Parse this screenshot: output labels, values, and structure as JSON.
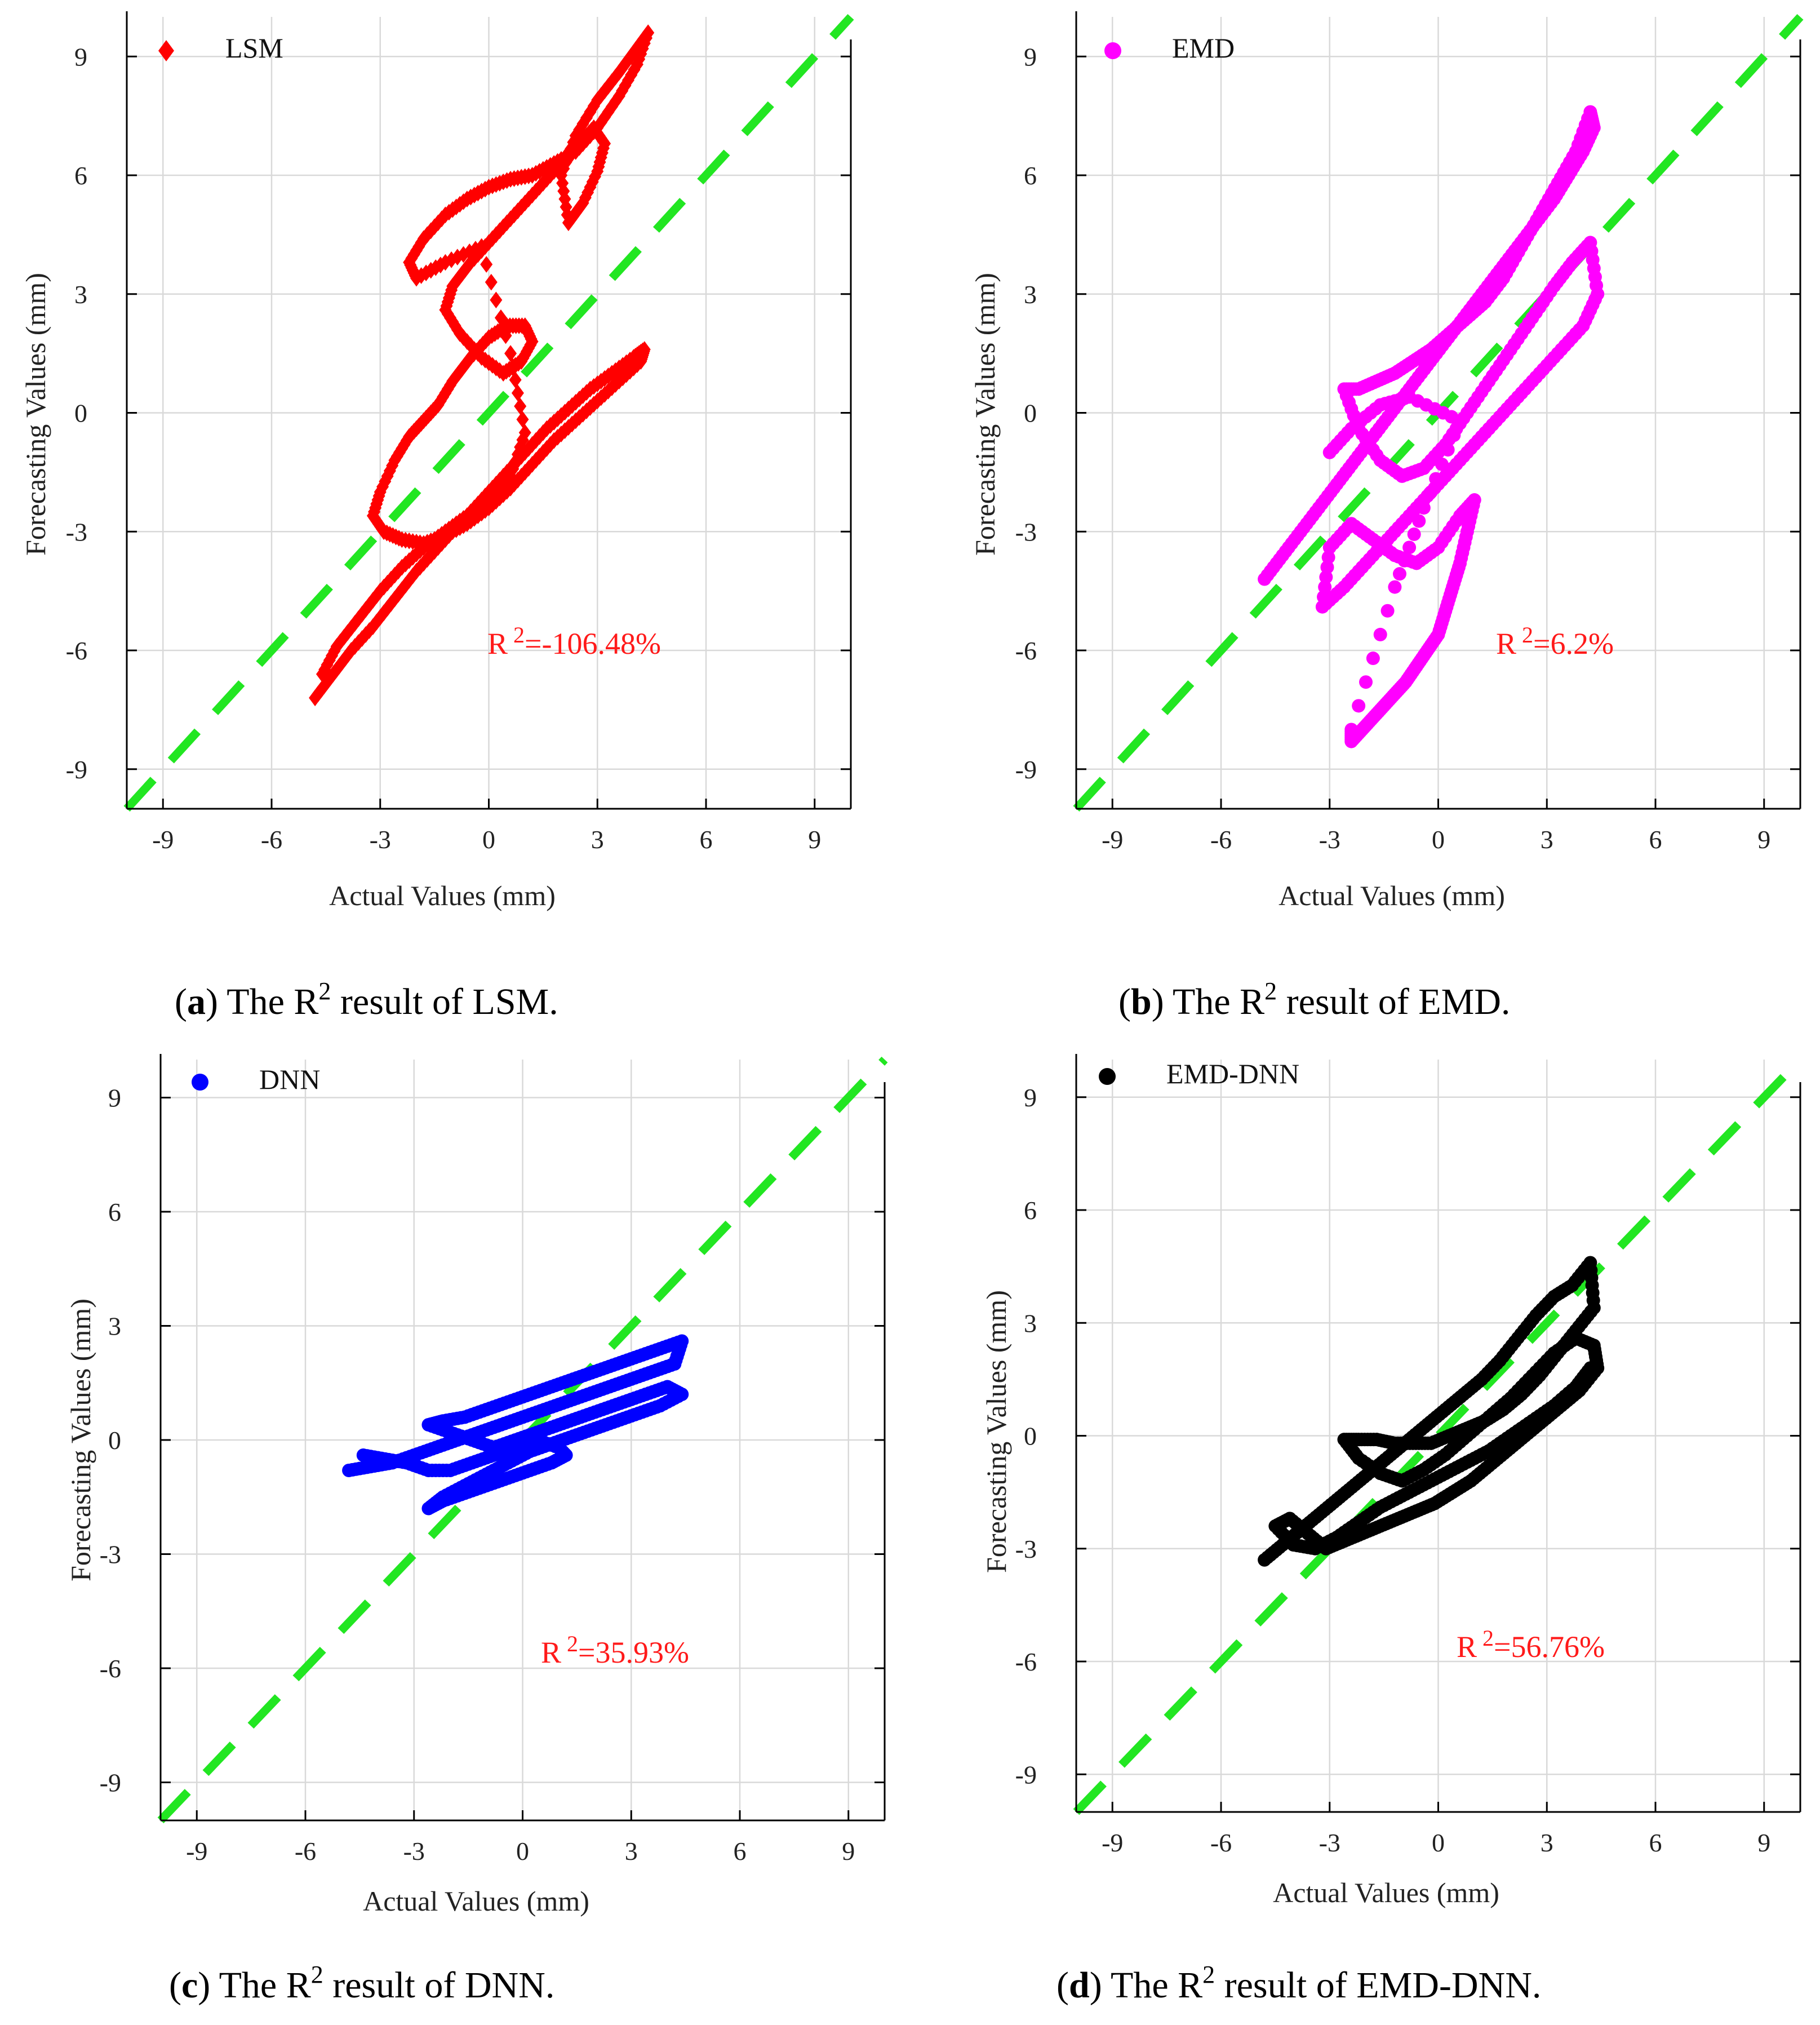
{
  "figure": {
    "panels": [
      {
        "id": "a",
        "legend": {
          "label": "LSM",
          "marker": "diamond"
        },
        "color": "#ff0000",
        "r2": {
          "prefix": "R",
          "sup": "2",
          "value": "=-106.48%"
        },
        "caption": {
          "letter": "a",
          "pre": "The R",
          "sup": "2",
          "post": " result of LSM."
        }
      },
      {
        "id": "b",
        "legend": {
          "label": "EMD",
          "marker": "circle"
        },
        "color": "#ff00ff",
        "r2": {
          "prefix": "R",
          "sup": "2",
          "value": "=6.2%"
        },
        "caption": {
          "letter": "b",
          "pre": "The R",
          "sup": "2",
          "post": " result of EMD."
        }
      },
      {
        "id": "c",
        "legend": {
          "label": "DNN",
          "marker": "circle"
        },
        "color": "#0000ff",
        "r2": {
          "prefix": "R",
          "sup": "2",
          "value": "=35.93%"
        },
        "caption": {
          "letter": "c",
          "pre": "The R",
          "sup": "2",
          "post": " result of DNN."
        }
      },
      {
        "id": "d",
        "legend": {
          "label": "EMD-DNN",
          "marker": "circle"
        },
        "color": "#000000",
        "r2": {
          "prefix": "R",
          "sup": "2",
          "value": "=56.76%"
        },
        "caption": {
          "letter": "d",
          "pre": "The R",
          "sup": "2",
          "post": " result of EMD-DNN."
        }
      }
    ]
  },
  "chart_data": [
    {
      "type": "scatter",
      "title": "LSM",
      "xlabel": "Actual Values (mm)",
      "ylabel": "Forecasting Values (mm)",
      "xlim": [
        -10,
        10
      ],
      "ylim": [
        -10,
        10
      ],
      "xticks": [
        -9,
        -6,
        -3,
        0,
        3,
        6,
        9
      ],
      "yticks": [
        -9,
        -6,
        -3,
        0,
        3,
        6,
        9
      ],
      "xtick_labels": [
        "-9",
        "-6",
        "-3",
        "0",
        "3",
        "6",
        "9"
      ],
      "ytick_labels": [
        "-9",
        "-6",
        "-3",
        "0",
        "3",
        "6",
        "9"
      ],
      "grid": true,
      "reference_line": {
        "slope": 1,
        "intercept": 0,
        "color": "#22e622",
        "style": "dashed"
      },
      "annotation": "R 2=-106.48%",
      "series": [
        {
          "name": "LSM",
          "color": "#ff0000",
          "marker": "diamond",
          "x": [
            -4.8,
            -4.3,
            -3.8,
            -3.2,
            -2.6,
            -2.0,
            -1.4,
            -0.8,
            -0.2,
            0.4,
            1.0,
            1.6,
            2.2,
            2.8,
            3.4,
            4.0,
            4.3,
            4.2,
            3.6,
            3.0,
            2.4,
            1.8,
            1.2,
            0.6,
            0.0,
            -0.6,
            -1.2,
            -1.8,
            -2.4,
            -2.9,
            -3.2,
            -3.0,
            -2.6,
            -2.2,
            -1.8,
            -1.4,
            -1.0,
            -0.5,
            0.0,
            0.5,
            1.0,
            1.2,
            0.9,
            0.4,
            -0.2,
            -0.8,
            -1.2,
            -1.0,
            -0.5,
            0.1,
            0.7,
            1.3,
            1.9,
            2.5,
            2.9,
            3.2,
            3.0,
            2.6,
            2.2,
            2.0,
            2.4,
            3.0,
            3.6,
            4.0,
            4.4,
            4.1,
            3.6,
            3.0,
            2.4,
            1.8,
            1.2,
            0.6,
            0.0,
            -0.6,
            -1.2,
            -1.8,
            -2.2,
            -2.0,
            -1.2,
            -0.2,
            0.6,
            1.0,
            0.6,
            0.0,
            -0.6,
            -1.2,
            -1.8,
            -2.4,
            -3.0,
            -3.6,
            -4.2,
            -4.6
          ],
          "y": [
            -7.2,
            -6.6,
            -6.0,
            -5.4,
            -4.7,
            -4.0,
            -3.4,
            -2.8,
            -2.2,
            -1.6,
            -1.0,
            -0.4,
            0.1,
            0.6,
            1.0,
            1.4,
            1.6,
            1.3,
            0.8,
            0.3,
            -0.2,
            -0.7,
            -1.3,
            -1.9,
            -2.4,
            -2.8,
            -3.1,
            -3.3,
            -3.2,
            -3.0,
            -2.6,
            -2.0,
            -1.2,
            -0.6,
            -0.2,
            0.2,
            0.8,
            1.4,
            1.9,
            2.2,
            2.2,
            1.8,
            1.3,
            1.0,
            1.4,
            2.0,
            2.6,
            3.2,
            3.8,
            4.4,
            5.0,
            5.6,
            6.2,
            6.8,
            7.2,
            6.8,
            6.1,
            5.3,
            4.8,
            6.0,
            7.0,
            7.9,
            8.6,
            9.1,
            9.6,
            8.8,
            8.0,
            7.2,
            6.6,
            6.3,
            6.0,
            5.9,
            5.7,
            5.4,
            5.0,
            4.4,
            3.8,
            3.4,
            3.8,
            4.2,
            1.5,
            -0.5,
            -1.6,
            -2.2,
            -2.6,
            -3.0,
            -3.4,
            -3.9,
            -4.5,
            -5.2,
            -5.9,
            -6.6
          ]
        }
      ]
    },
    {
      "type": "scatter",
      "title": "EMD",
      "xlabel": "Actual Values (mm)",
      "ylabel": "Forecasting Values (mm)",
      "xlim": [
        -10,
        10
      ],
      "ylim": [
        -10,
        10
      ],
      "xticks": [
        -9,
        -6,
        -3,
        0,
        3,
        6,
        9
      ],
      "yticks": [
        -9,
        -6,
        -3,
        0,
        3,
        6,
        9
      ],
      "xtick_labels": [
        "-9",
        "-6",
        "-3",
        "0",
        "3",
        "6",
        "9"
      ],
      "ytick_labels": [
        "-9",
        "-6",
        "-3",
        "0",
        "3",
        "6",
        "9"
      ],
      "grid": true,
      "reference_line": {
        "slope": 1,
        "intercept": 0,
        "color": "#22e622",
        "style": "dashed"
      },
      "annotation": "R 2=6.2%",
      "series": [
        {
          "name": "EMD",
          "color": "#ff00ff",
          "marker": "circle",
          "x": [
            -4.8,
            -4.3,
            -3.8,
            -3.3,
            -2.8,
            -2.3,
            -1.8,
            -1.3,
            -0.8,
            -0.3,
            0.2,
            0.7,
            1.2,
            1.7,
            2.2,
            2.7,
            3.2,
            3.6,
            4.0,
            4.3,
            4.2,
            3.8,
            3.3,
            2.8,
            2.3,
            1.8,
            1.3,
            0.8,
            0.3,
            -0.2,
            -0.7,
            -1.2,
            -1.7,
            -2.2,
            -2.6,
            -2.2,
            -1.6,
            -1.0,
            -0.4,
            0.2,
            0.8,
            1.4,
            2.0,
            2.6,
            3.2,
            3.7,
            4.2,
            4.4,
            4.0,
            3.4,
            2.8,
            2.2,
            1.6,
            1.0,
            0.4,
            -0.2,
            -0.8,
            -1.4,
            -2.0,
            -2.6,
            -3.2,
            -3.0,
            -2.4,
            -1.8,
            -1.2,
            -0.6,
            0.0,
            0.6,
            1.0,
            0.8,
            0.6,
            0.4,
            0.2,
            0.0,
            -0.3,
            -0.6,
            -0.9,
            -1.2,
            -1.5,
            -1.8,
            -2.1,
            -2.4,
            -2.4,
            -1.2,
            -0.4,
            0.6,
            -0.8,
            -1.6,
            -2.4,
            -3.0
          ],
          "y": [
            -4.2,
            -3.6,
            -3.0,
            -2.4,
            -1.8,
            -1.2,
            -0.6,
            0.0,
            0.6,
            1.2,
            1.8,
            2.4,
            3.0,
            3.6,
            4.2,
            4.8,
            5.4,
            6.0,
            6.6,
            7.2,
            7.6,
            6.6,
            5.8,
            5.0,
            4.2,
            3.4,
            2.8,
            2.4,
            2.0,
            1.6,
            1.3,
            1.0,
            0.8,
            0.6,
            0.6,
            -0.4,
            -1.2,
            -1.6,
            -1.4,
            -0.8,
            0.0,
            0.8,
            1.6,
            2.4,
            3.2,
            3.8,
            4.3,
            3.0,
            2.2,
            1.6,
            1.0,
            0.4,
            -0.2,
            -0.8,
            -1.4,
            -2.0,
            -2.6,
            -3.2,
            -3.8,
            -4.4,
            -4.9,
            -3.4,
            -2.8,
            -3.2,
            -3.6,
            -3.8,
            -3.4,
            -2.6,
            -2.2,
            -3.0,
            -3.8,
            -4.4,
            -5.0,
            -5.6,
            -6.0,
            -6.4,
            -6.8,
            -7.1,
            -7.4,
            -7.7,
            -8.0,
            -8.3,
            -8.0,
            -4.4,
            -2.4,
            -0.2,
            0.4,
            0.2,
            -0.4,
            -1.0
          ]
        }
      ]
    },
    {
      "type": "scatter",
      "title": "DNN",
      "xlabel": "Actual Values (mm)",
      "ylabel": "Forecasting Values (mm)",
      "xlim": [
        -10,
        10
      ],
      "ylim": [
        -10,
        10
      ],
      "xticks": [
        -9,
        -6,
        -3,
        0,
        3,
        6,
        9
      ],
      "yticks": [
        -9,
        -6,
        -3,
        0,
        3,
        6,
        9
      ],
      "xtick_labels": [
        "-9",
        "-6",
        "-3",
        "0",
        "3",
        "6",
        "9"
      ],
      "ytick_labels": [
        "-9",
        "-6",
        "-3",
        "0",
        "3",
        "6",
        "9"
      ],
      "grid": true,
      "reference_line": {
        "slope": 1,
        "intercept": 0,
        "color": "#22e622",
        "style": "dashed"
      },
      "annotation": "R 2=35.93%",
      "series": [
        {
          "name": "DNN",
          "color": "#0000ff",
          "marker": "circle",
          "x": [
            -4.8,
            -4.2,
            -3.6,
            -3.0,
            -2.4,
            -1.8,
            -1.2,
            -0.6,
            0.0,
            0.6,
            1.2,
            1.8,
            2.4,
            3.0,
            3.6,
            4.2,
            4.4,
            3.8,
            3.2,
            2.6,
            2.0,
            1.4,
            0.8,
            0.2,
            -0.4,
            -1.0,
            -1.6,
            -2.2,
            -2.6,
            -2.0,
            -1.4,
            -0.8,
            -0.2,
            0.4,
            1.0,
            1.6,
            2.2,
            2.8,
            3.4,
            4.0,
            4.4,
            3.8,
            3.2,
            2.6,
            2.0,
            1.4,
            0.8,
            0.2,
            -0.4,
            -1.0,
            -1.6,
            -2.2,
            -2.6,
            -2.2,
            -1.6,
            -1.0,
            -0.4,
            0.2,
            0.8,
            1.2,
            1.0,
            0.4,
            -0.2,
            -0.8,
            -1.4,
            -2.0,
            -2.6,
            -3.2,
            -3.8,
            -4.4
          ],
          "y": [
            -0.8,
            -0.7,
            -0.6,
            -0.4,
            -0.2,
            0.0,
            0.2,
            0.4,
            0.6,
            0.8,
            1.0,
            1.2,
            1.4,
            1.6,
            1.8,
            2.0,
            2.6,
            2.4,
            2.2,
            2.0,
            1.8,
            1.6,
            1.4,
            1.2,
            1.0,
            0.8,
            0.6,
            0.5,
            0.4,
            0.2,
            0.0,
            -0.2,
            0.0,
            0.2,
            0.4,
            0.6,
            0.8,
            1.0,
            1.2,
            1.4,
            1.2,
            0.9,
            0.7,
            0.5,
            0.3,
            0.1,
            -0.1,
            -0.3,
            -0.6,
            -0.9,
            -1.2,
            -1.5,
            -1.8,
            -1.6,
            -1.4,
            -1.2,
            -1.0,
            -0.8,
            -0.6,
            -0.4,
            -0.2,
            0.0,
            -0.2,
            -0.4,
            -0.6,
            -0.8,
            -0.8,
            -0.6,
            -0.5,
            -0.4
          ]
        }
      ]
    },
    {
      "type": "scatter",
      "title": "EMD-DNN",
      "xlabel": "Actual Values (mm)",
      "ylabel": "Forecasting Values (mm)",
      "xlim": [
        -10,
        10
      ],
      "ylim": [
        -10,
        10
      ],
      "xticks": [
        -9,
        -6,
        -3,
        0,
        3,
        6,
        9
      ],
      "yticks": [
        -9,
        -6,
        -3,
        0,
        3,
        6,
        9
      ],
      "xtick_labels": [
        "-9",
        "-6",
        "-3",
        "0",
        "3",
        "6",
        "9"
      ],
      "ytick_labels": [
        "-9",
        "-6",
        "-3",
        "0",
        "3",
        "6",
        "9"
      ],
      "grid": true,
      "reference_line": {
        "slope": 1,
        "intercept": 0,
        "color": "#22e622",
        "style": "dashed"
      },
      "annotation": "R 2=56.76%",
      "series": [
        {
          "name": "EMD-DNN",
          "color": "#000000",
          "marker": "circle",
          "x": [
            -4.8,
            -4.3,
            -3.8,
            -3.3,
            -2.8,
            -2.3,
            -1.8,
            -1.3,
            -0.8,
            -0.3,
            0.2,
            0.7,
            1.2,
            1.7,
            2.2,
            2.7,
            3.2,
            3.7,
            4.2,
            4.3,
            3.8,
            3.3,
            2.8,
            2.3,
            1.8,
            1.3,
            0.8,
            0.3,
            -0.2,
            -0.7,
            -1.2,
            -1.7,
            -2.2,
            -2.6,
            -2.2,
            -1.6,
            -1.0,
            -0.4,
            0.2,
            0.8,
            1.4,
            2.0,
            2.6,
            3.2,
            3.8,
            4.3,
            4.4,
            3.9,
            3.4,
            2.9,
            2.4,
            1.9,
            1.4,
            0.9,
            0.4,
            -0.1,
            -0.6,
            -1.1,
            -1.6,
            -2.1,
            -2.6,
            -3.1,
            -3.6,
            -4.1,
            -4.5,
            -4.0,
            -3.4,
            -2.8,
            -2.2,
            -1.6,
            -1.0,
            -0.4,
            0.2,
            0.8,
            1.4,
            2.0,
            2.6,
            3.2,
            3.8,
            4.2
          ],
          "y": [
            -3.3,
            -2.9,
            -2.5,
            -2.1,
            -1.7,
            -1.3,
            -0.9,
            -0.5,
            -0.1,
            0.3,
            0.7,
            1.1,
            1.5,
            2.0,
            2.6,
            3.2,
            3.7,
            4.0,
            4.6,
            3.4,
            2.8,
            2.2,
            1.6,
            1.1,
            0.7,
            0.4,
            0.2,
            0.0,
            -0.2,
            -0.2,
            -0.2,
            -0.1,
            -0.1,
            -0.1,
            -0.6,
            -1.0,
            -1.2,
            -0.9,
            -0.5,
            0.0,
            0.5,
            1.0,
            1.6,
            2.2,
            2.6,
            2.4,
            1.8,
            1.2,
            0.8,
            0.4,
            0.0,
            -0.4,
            -0.8,
            -1.2,
            -1.5,
            -1.8,
            -2.0,
            -2.2,
            -2.4,
            -2.6,
            -2.8,
            -3.0,
            -2.6,
            -2.2,
            -2.4,
            -2.9,
            -3.0,
            -2.7,
            -2.3,
            -1.9,
            -1.6,
            -1.3,
            -1.0,
            -0.7,
            -0.4,
            0.0,
            0.4,
            0.8,
            1.3,
            1.8
          ]
        }
      ]
    }
  ]
}
